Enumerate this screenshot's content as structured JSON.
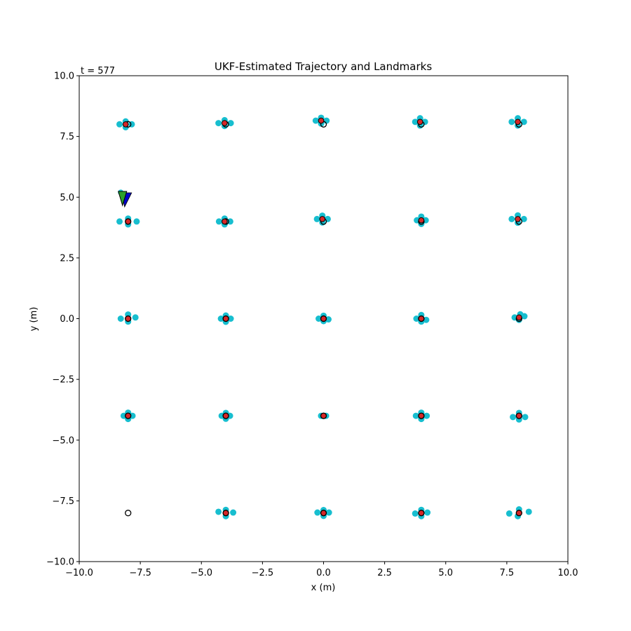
{
  "chart_data": {
    "type": "scatter",
    "title": "UKF-Estimated Trajectory and Landmarks",
    "annotation": "t = 577",
    "xlabel": "x (m)",
    "ylabel": "y (m)",
    "xlim": [
      -10,
      10
    ],
    "ylim": [
      -10,
      10
    ],
    "xticks": [
      -10,
      -7.5,
      -5,
      -2.5,
      0,
      2.5,
      5,
      7.5,
      10
    ],
    "yticks": [
      -10,
      -7.5,
      -5,
      -2.5,
      0,
      2.5,
      5,
      7.5,
      10
    ],
    "xtick_labels": [
      "−10.0",
      "−7.5",
      "−5.0",
      "−2.5",
      "0.0",
      "2.5",
      "5.0",
      "7.5",
      "10.0"
    ],
    "ytick_labels": [
      "−10.0",
      "−7.5",
      "−5.0",
      "−2.5",
      "0.0",
      "2.5",
      "5.0",
      "7.5",
      "10.0"
    ],
    "grid": false,
    "colors": {
      "sigma_points": "#17becf",
      "estimate": "#d62728",
      "true_landmark_edge": "#000000",
      "robot_true": "#0000cc",
      "robot_est": "#2ca02c"
    },
    "true_landmarks": [
      {
        "x": -8,
        "y": 8
      },
      {
        "x": -4,
        "y": 8
      },
      {
        "x": 0,
        "y": 8
      },
      {
        "x": 4,
        "y": 8
      },
      {
        "x": 8,
        "y": 8
      },
      {
        "x": -8,
        "y": 4
      },
      {
        "x": -4,
        "y": 4
      },
      {
        "x": 0,
        "y": 4
      },
      {
        "x": 4,
        "y": 4
      },
      {
        "x": 8,
        "y": 4
      },
      {
        "x": -8,
        "y": 0
      },
      {
        "x": -4,
        "y": 0
      },
      {
        "x": 0,
        "y": 0
      },
      {
        "x": 4,
        "y": 0
      },
      {
        "x": 8,
        "y": 0
      },
      {
        "x": -8,
        "y": -4
      },
      {
        "x": -4,
        "y": -4
      },
      {
        "x": 0,
        "y": -4
      },
      {
        "x": 4,
        "y": -4
      },
      {
        "x": 8,
        "y": -4
      },
      {
        "x": -8,
        "y": -8
      },
      {
        "x": -4,
        "y": -8
      },
      {
        "x": 0,
        "y": -8
      },
      {
        "x": 4,
        "y": -8
      },
      {
        "x": 8,
        "y": -8
      }
    ],
    "estimated_landmarks": [
      {
        "x": -8.1,
        "y": 8.0,
        "sigma": [
          [
            -8.35,
            8.0
          ],
          [
            -7.85,
            8.0
          ],
          [
            -8.1,
            8.12
          ],
          [
            -8.1,
            7.88
          ]
        ]
      },
      {
        "x": -4.05,
        "y": 8.05,
        "sigma": [
          [
            -4.3,
            8.05
          ],
          [
            -3.8,
            8.05
          ],
          [
            -4.05,
            8.17
          ],
          [
            -4.05,
            7.93
          ]
        ]
      },
      {
        "x": -0.1,
        "y": 8.15,
        "sigma": [
          [
            -0.32,
            8.15
          ],
          [
            0.12,
            8.15
          ],
          [
            -0.1,
            8.27
          ],
          [
            -0.1,
            8.03
          ]
        ]
      },
      {
        "x": 3.95,
        "y": 8.1,
        "sigma": [
          [
            3.75,
            8.1
          ],
          [
            4.15,
            8.1
          ],
          [
            3.95,
            8.25
          ],
          [
            3.95,
            7.95
          ]
        ]
      },
      {
        "x": 7.95,
        "y": 8.1,
        "sigma": [
          [
            7.7,
            8.1
          ],
          [
            8.2,
            8.1
          ],
          [
            7.95,
            8.25
          ],
          [
            7.95,
            7.95
          ]
        ]
      },
      {
        "x": -8.0,
        "y": 4.0,
        "sigma": [
          [
            -8.35,
            4.0
          ],
          [
            -7.65,
            4.0
          ],
          [
            -8.0,
            4.12
          ],
          [
            -8.0,
            3.88
          ]
        ]
      },
      {
        "x": -4.05,
        "y": 4.0,
        "sigma": [
          [
            -4.28,
            4.0
          ],
          [
            -3.82,
            4.0
          ],
          [
            -4.05,
            4.12
          ],
          [
            -4.05,
            3.88
          ]
        ]
      },
      {
        "x": -0.05,
        "y": 4.1,
        "sigma": [
          [
            -0.27,
            4.1
          ],
          [
            0.17,
            4.1
          ],
          [
            -0.05,
            4.24
          ],
          [
            -0.05,
            3.96
          ]
        ]
      },
      {
        "x": 4.0,
        "y": 4.05,
        "sigma": [
          [
            3.82,
            4.05
          ],
          [
            4.18,
            4.05
          ],
          [
            4.0,
            4.2
          ],
          [
            4.0,
            3.9
          ]
        ]
      },
      {
        "x": 7.95,
        "y": 4.1,
        "sigma": [
          [
            7.7,
            4.1
          ],
          [
            8.2,
            4.1
          ],
          [
            7.95,
            4.25
          ],
          [
            7.95,
            3.95
          ]
        ]
      },
      {
        "x": -8.0,
        "y": 0.0,
        "sigma": [
          [
            -8.3,
            0.0
          ],
          [
            -7.7,
            0.05
          ],
          [
            -8.0,
            0.17
          ],
          [
            -8.0,
            -0.12
          ]
        ]
      },
      {
        "x": -4.0,
        "y": 0.0,
        "sigma": [
          [
            -4.2,
            0.0
          ],
          [
            -3.8,
            0.0
          ],
          [
            -4.0,
            0.13
          ],
          [
            -4.0,
            -0.13
          ]
        ]
      },
      {
        "x": 0.0,
        "y": 0.0,
        "sigma": [
          [
            -0.2,
            0.0
          ],
          [
            0.2,
            -0.03
          ],
          [
            0.0,
            0.12
          ],
          [
            0.0,
            -0.1
          ]
        ]
      },
      {
        "x": 4.0,
        "y": 0.0,
        "sigma": [
          [
            3.8,
            0.0
          ],
          [
            4.2,
            -0.05
          ],
          [
            4.0,
            0.15
          ],
          [
            4.0,
            -0.12
          ]
        ]
      },
      {
        "x": 8.0,
        "y": 0.05,
        "sigma": [
          [
            7.82,
            0.05
          ],
          [
            8.22,
            0.1
          ],
          [
            8.05,
            0.18
          ],
          [
            8.0,
            -0.05
          ]
        ]
      },
      {
        "x": -8.0,
        "y": -4.0,
        "sigma": [
          [
            -8.18,
            -4.0
          ],
          [
            -7.82,
            -4.0
          ],
          [
            -8.0,
            -3.87
          ],
          [
            -8.0,
            -4.13
          ]
        ]
      },
      {
        "x": -4.0,
        "y": -4.0,
        "sigma": [
          [
            -4.17,
            -4.0
          ],
          [
            -3.83,
            -4.0
          ],
          [
            -4.0,
            -3.88
          ],
          [
            -4.0,
            -4.12
          ]
        ]
      },
      {
        "x": 0.0,
        "y": -4.0,
        "sigma": [
          [
            -0.1,
            -4.0
          ],
          [
            0.1,
            -4.0
          ]
        ]
      },
      {
        "x": 4.0,
        "y": -4.0,
        "sigma": [
          [
            3.78,
            -4.0
          ],
          [
            4.22,
            -4.0
          ],
          [
            4.0,
            -3.87
          ],
          [
            4.0,
            -4.13
          ]
        ]
      },
      {
        "x": 8.0,
        "y": -4.0,
        "sigma": [
          [
            7.75,
            -4.05
          ],
          [
            8.25,
            -4.05
          ],
          [
            8.0,
            -3.88
          ],
          [
            8.0,
            -4.15
          ]
        ]
      },
      {
        "x": -4.0,
        "y": -8.0,
        "sigma": [
          [
            -4.3,
            -7.95
          ],
          [
            -3.7,
            -7.98
          ],
          [
            -4.0,
            -7.87
          ],
          [
            -4.0,
            -8.13
          ]
        ]
      },
      {
        "x": 0.0,
        "y": -8.0,
        "sigma": [
          [
            -0.25,
            -7.98
          ],
          [
            0.22,
            -7.98
          ],
          [
            0.0,
            -7.88
          ],
          [
            0.0,
            -8.12
          ]
        ]
      },
      {
        "x": 4.0,
        "y": -8.0,
        "sigma": [
          [
            3.75,
            -8.02
          ],
          [
            4.25,
            -7.98
          ],
          [
            4.0,
            -7.87
          ],
          [
            4.0,
            -8.13
          ]
        ]
      },
      {
        "x": 8.0,
        "y": -8.0,
        "sigma": [
          [
            7.6,
            -8.02
          ],
          [
            8.4,
            -7.95
          ],
          [
            8.0,
            -7.85
          ],
          [
            7.95,
            -8.13
          ]
        ]
      }
    ],
    "robot": {
      "x": -8.2,
      "y": 4.95,
      "heading_deg": -90
    }
  }
}
